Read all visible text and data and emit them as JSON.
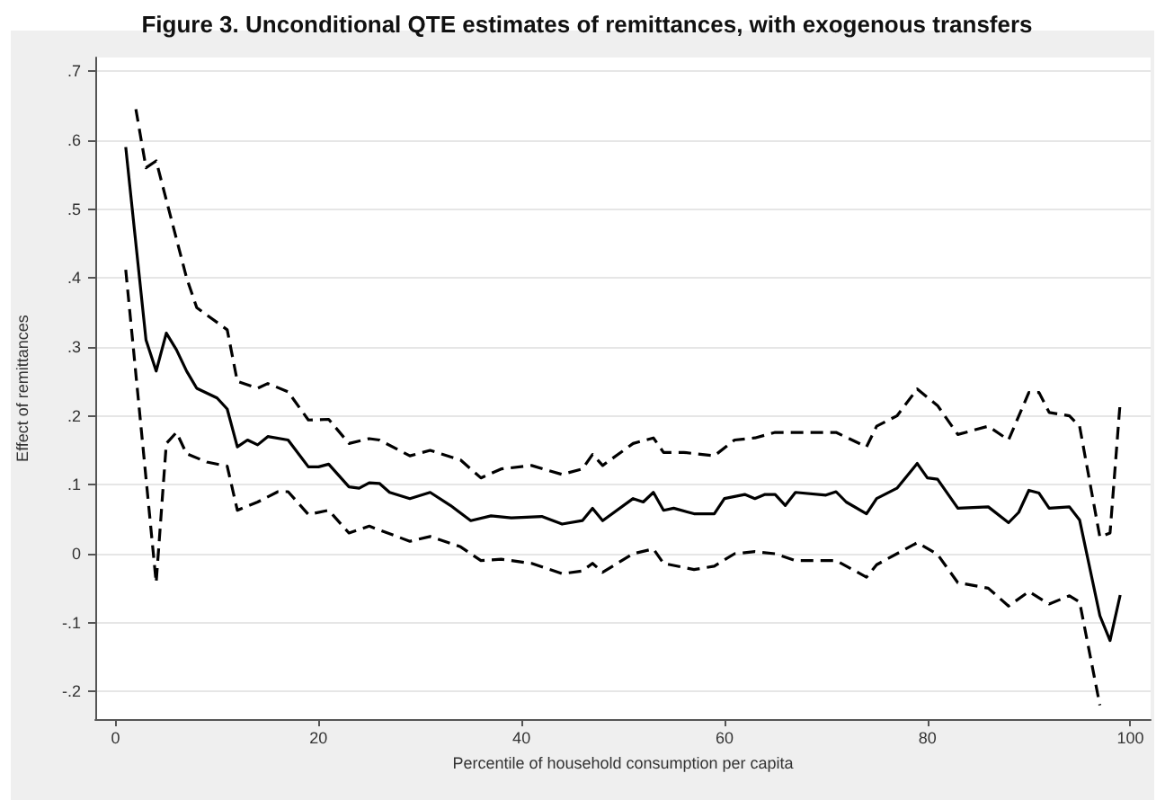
{
  "chart_data": {
    "type": "line",
    "title": "Figure 3. Unconditional QTE estimates of remittances, with exogenous transfers",
    "xlabel": "Percentile of household consumption per capita",
    "ylabel": "Effect of remittances",
    "xlim": [
      -2,
      102
    ],
    "xticks": [
      0,
      20,
      40,
      60,
      80,
      100
    ],
    "ylim": [
      -0.24,
      0.72
    ],
    "yticks": [
      {
        "value": -0.2,
        "label": "-.2"
      },
      {
        "value": -0.1,
        "label": "-.1"
      },
      0,
      {
        "value": 0.1,
        "label": ".1"
      },
      {
        "value": 0.2,
        "label": ".2"
      },
      {
        "value": 0.3,
        "label": ".3"
      },
      {
        "value": 0.4,
        "label": ".4"
      },
      {
        "value": 0.5,
        "label": ".5"
      },
      {
        "value": 0.6,
        "label": ".6"
      },
      {
        "value": 0.7,
        "label": ".7"
      }
    ],
    "grid": "y",
    "series": [
      {
        "color": "#000000",
        "line_style": "solid",
        "x": [
          1,
          3,
          4,
          5,
          6,
          7,
          8,
          10,
          11,
          12,
          13,
          14,
          15,
          17,
          19,
          20,
          21,
          23,
          24,
          25,
          26,
          27,
          29,
          31,
          33,
          35,
          37,
          39,
          42,
          44,
          46,
          47,
          48,
          51,
          52,
          53,
          54,
          55,
          57,
          59,
          60,
          62,
          63,
          64,
          65,
          66,
          67,
          70,
          71,
          72,
          74,
          75,
          77,
          79,
          80,
          81,
          83,
          86,
          88,
          89,
          90,
          91,
          92,
          94,
          95,
          97,
          98,
          99
        ],
        "values": [
          0.59,
          0.31,
          0.265,
          0.32,
          0.296,
          0.265,
          0.24,
          0.226,
          0.21,
          0.155,
          0.165,
          0.158,
          0.17,
          0.165,
          0.126,
          0.126,
          0.13,
          0.097,
          0.095,
          0.103,
          0.102,
          0.089,
          0.08,
          0.089,
          0.07,
          0.048,
          0.055,
          0.052,
          0.054,
          0.043,
          0.048,
          0.066,
          0.048,
          0.08,
          0.075,
          0.089,
          0.063,
          0.066,
          0.058,
          0.058,
          0.08,
          0.086,
          0.08,
          0.086,
          0.086,
          0.07,
          0.089,
          0.085,
          0.09,
          0.075,
          0.058,
          0.08,
          0.095,
          0.131,
          0.11,
          0.108,
          0.066,
          0.068,
          0.045,
          0.06,
          0.092,
          0.088,
          0.066,
          0.068,
          0.049,
          -0.09,
          -0.126,
          -0.06
        ]
      },
      {
        "color": "#000000",
        "line_style": "dashed",
        "x": [
          2,
          3,
          4,
          7,
          8,
          11,
          12,
          14,
          15,
          17,
          19,
          21,
          23,
          25,
          26,
          29,
          31,
          34,
          36,
          38,
          41,
          44,
          46,
          47,
          48,
          51,
          53,
          54,
          56,
          59,
          61,
          63,
          65,
          68,
          71,
          74,
          75,
          77,
          79,
          81,
          83,
          86,
          88,
          90,
          91,
          92,
          94,
          95,
          97,
          98,
          99
        ],
        "values": [
          0.645,
          0.56,
          0.57,
          0.4,
          0.357,
          0.325,
          0.25,
          0.24,
          0.247,
          0.235,
          0.194,
          0.195,
          0.16,
          0.167,
          0.165,
          0.142,
          0.15,
          0.136,
          0.11,
          0.123,
          0.128,
          0.115,
          0.123,
          0.144,
          0.128,
          0.16,
          0.168,
          0.147,
          0.147,
          0.142,
          0.165,
          0.168,
          0.176,
          0.176,
          0.176,
          0.155,
          0.185,
          0.2,
          0.239,
          0.215,
          0.173,
          0.185,
          0.165,
          0.234,
          0.234,
          0.205,
          0.2,
          0.185,
          0.024,
          0.03,
          0.22
        ]
      },
      {
        "color": "#000000",
        "line_style": "dashed",
        "x": [
          1,
          4,
          5,
          6,
          7,
          9,
          11,
          12,
          14,
          16,
          17,
          19,
          21,
          23,
          25,
          29,
          31,
          34,
          36,
          38,
          41,
          44,
          46,
          47,
          48,
          51,
          53,
          54,
          57,
          59,
          61,
          63,
          65,
          67,
          71,
          74,
          75,
          79,
          81,
          83,
          86,
          88,
          90,
          92,
          94,
          95,
          97
        ],
        "values": [
          0.412,
          -0.042,
          0.16,
          0.176,
          0.145,
          0.133,
          0.127,
          0.063,
          0.075,
          0.09,
          0.09,
          0.057,
          0.063,
          0.03,
          0.04,
          0.018,
          0.025,
          0.01,
          -0.01,
          -0.008,
          -0.014,
          -0.029,
          -0.025,
          -0.014,
          -0.027,
          0,
          0.007,
          -0.014,
          -0.023,
          -0.018,
          0,
          0.003,
          0,
          -0.01,
          -0.01,
          -0.034,
          -0.016,
          0.016,
          -0.001,
          -0.042,
          -0.05,
          -0.076,
          -0.055,
          -0.073,
          -0.061,
          -0.07,
          -0.22
        ]
      }
    ]
  }
}
